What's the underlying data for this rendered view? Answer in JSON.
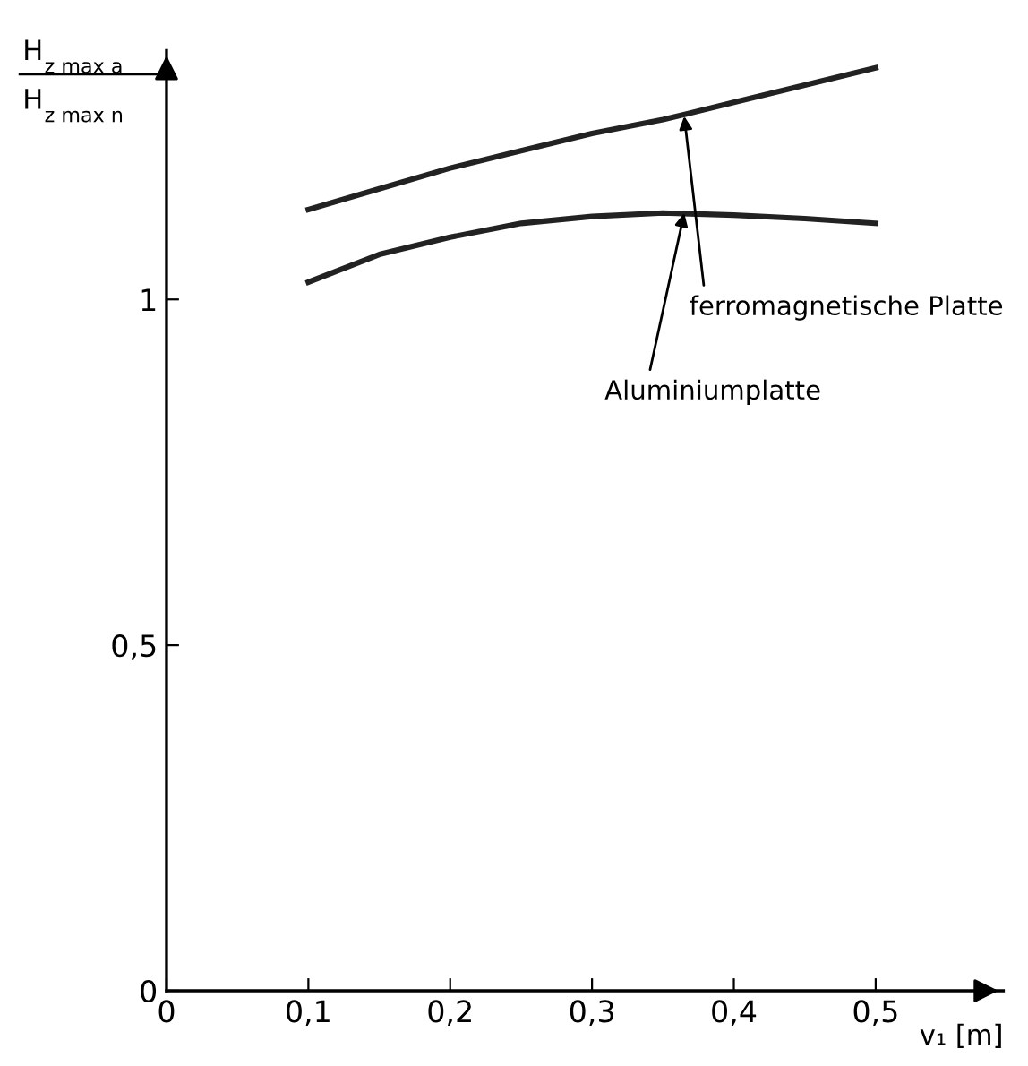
{
  "chart_data": {
    "type": "line",
    "xlabel": "v₁ [m]",
    "ylabel": "H$_{z max a}$\nH$_{z max n}$",
    "xlim": [
      0,
      0.59
    ],
    "ylim": [
      0,
      1.36
    ],
    "xticks": [
      {
        "value": 0,
        "label": "0"
      },
      {
        "value": 0.1,
        "label": "0,1"
      },
      {
        "value": 0.2,
        "label": "0,2"
      },
      {
        "value": 0.3,
        "label": "0,3"
      },
      {
        "value": 0.4,
        "label": "0,4"
      },
      {
        "value": 0.5,
        "label": "0,5"
      }
    ],
    "yticks": [
      {
        "value": 0,
        "label": "0"
      },
      {
        "value": 0.5,
        "label": "0,5"
      },
      {
        "value": 1,
        "label": "1"
      }
    ],
    "x": [
      0.1,
      0.15,
      0.2,
      0.25,
      0.3,
      0.35,
      0.4,
      0.45,
      0.5
    ],
    "series": [
      {
        "color": "#222222",
        "values": [
          1.13,
          1.16,
          1.19,
          1.215,
          1.24,
          1.26,
          1.285,
          1.31,
          1.335
        ]
      },
      {
        "color": "#222222",
        "values": [
          1.025,
          1.065,
          1.09,
          1.11,
          1.12,
          1.125,
          1.122,
          1.117,
          1.11
        ]
      }
    ],
    "annotations": [
      {
        "text": "ferromagnetische Platte",
        "x": 0.365,
        "y": 1.265
      },
      {
        "text": "Aluminiumplatte",
        "x": 0.365,
        "y": 1.125
      }
    ],
    "grid": false,
    "legend": false,
    "marker": "none",
    "line_style": "solid"
  }
}
